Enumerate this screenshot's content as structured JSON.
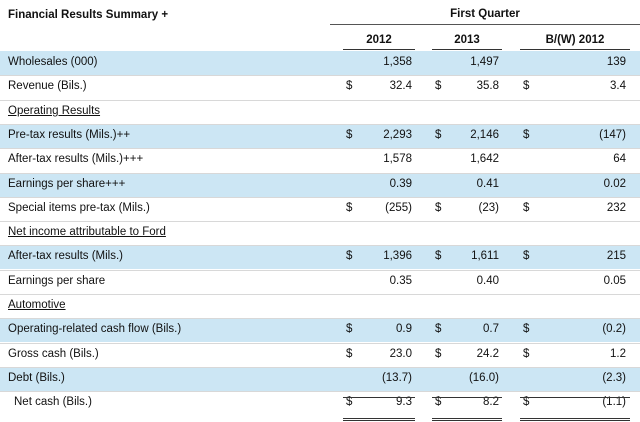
{
  "title": "Financial Results Summary +",
  "period": "First Quarter",
  "columns": [
    "2012",
    "2013",
    "B/(W) 2012"
  ],
  "rows": [
    {
      "label": "Wholesales (000)",
      "shade": true,
      "header": false,
      "indent": false,
      "d1": "",
      "v1": "1,358",
      "d2": "",
      "v2": "1,497",
      "d3": "",
      "v3": "139"
    },
    {
      "label": "Revenue (Bils.)",
      "shade": false,
      "header": false,
      "indent": false,
      "d1": "$",
      "v1": "32.4",
      "d2": "$",
      "v2": "35.8",
      "d3": "$",
      "v3": "3.4"
    },
    {
      "label": "Operating Results",
      "shade": false,
      "header": true,
      "indent": false,
      "d1": "",
      "v1": "",
      "d2": "",
      "v2": "",
      "d3": "",
      "v3": ""
    },
    {
      "label": "Pre-tax results (Mils.)++",
      "shade": true,
      "header": false,
      "indent": false,
      "d1": "$",
      "v1": "2,293",
      "d2": "$",
      "v2": "2,146",
      "d3": "$",
      "v3": "(147)"
    },
    {
      "label": "After-tax results (Mils.)+++",
      "shade": false,
      "header": false,
      "indent": false,
      "d1": "",
      "v1": "1,578",
      "d2": "",
      "v2": "1,642",
      "d3": "",
      "v3": "64"
    },
    {
      "label": "Earnings per share+++",
      "shade": true,
      "header": false,
      "indent": false,
      "d1": "",
      "v1": "0.39",
      "d2": "",
      "v2": "0.41",
      "d3": "",
      "v3": "0.02"
    },
    {
      "label": "Special items pre-tax (Mils.)",
      "shade": false,
      "header": false,
      "indent": false,
      "d1": "$",
      "v1": "(255)",
      "d2": "$",
      "v2": "(23)",
      "d3": "$",
      "v3": "232"
    },
    {
      "label": "Net income attributable to Ford",
      "shade": false,
      "header": true,
      "indent": false,
      "d1": "",
      "v1": "",
      "d2": "",
      "v2": "",
      "d3": "",
      "v3": ""
    },
    {
      "label": "After-tax results (Mils.)",
      "shade": true,
      "header": false,
      "indent": false,
      "d1": "$",
      "v1": "1,396",
      "d2": "$",
      "v2": "1,611",
      "d3": "$",
      "v3": "215"
    },
    {
      "label": "Earnings per share",
      "shade": false,
      "header": false,
      "indent": false,
      "d1": "",
      "v1": "0.35",
      "d2": "",
      "v2": "0.40",
      "d3": "",
      "v3": "0.05"
    },
    {
      "label": "Automotive",
      "shade": false,
      "header": true,
      "indent": false,
      "d1": "",
      "v1": "",
      "d2": "",
      "v2": "",
      "d3": "",
      "v3": ""
    },
    {
      "label": "Operating-related cash flow (Bils.)",
      "shade": true,
      "header": false,
      "indent": false,
      "d1": "$",
      "v1": "0.9",
      "d2": "$",
      "v2": "0.7",
      "d3": "$",
      "v3": "(0.2)"
    },
    {
      "label": "Gross cash (Bils.)",
      "shade": false,
      "header": false,
      "indent": false,
      "d1": "$",
      "v1": "23.0",
      "d2": "$",
      "v2": "24.2",
      "d3": "$",
      "v3": "1.2"
    },
    {
      "label": "Debt (Bils.)",
      "shade": true,
      "header": false,
      "indent": false,
      "d1": "",
      "v1": "(13.7)",
      "d2": "",
      "v2": "(16.0)",
      "d3": "",
      "v3": "(2.3)"
    },
    {
      "label": "Net cash (Bils.)",
      "shade": false,
      "header": false,
      "indent": true,
      "d1": "$",
      "v1": "9.3",
      "d2": "$",
      "v2": "8.2",
      "d3": "$",
      "v3": "(1.1)"
    }
  ]
}
